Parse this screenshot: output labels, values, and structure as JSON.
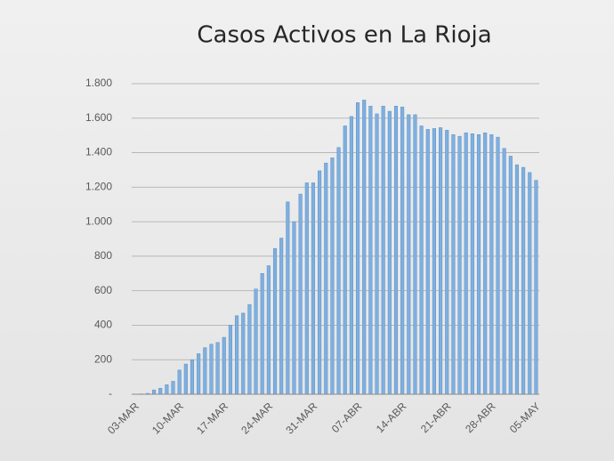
{
  "chart_data": {
    "type": "bar",
    "title": "Casos Activos en La Rioja",
    "categories": [
      "03-MAR",
      null,
      null,
      null,
      null,
      null,
      null,
      "10-MAR",
      null,
      null,
      null,
      null,
      null,
      null,
      "17-MAR",
      null,
      null,
      null,
      null,
      null,
      null,
      "24-MAR",
      null,
      null,
      null,
      null,
      null,
      null,
      "31-MAR",
      null,
      null,
      null,
      null,
      null,
      null,
      "07-ABR",
      null,
      null,
      null,
      null,
      null,
      null,
      "14-ABR",
      null,
      null,
      null,
      null,
      null,
      null,
      "21-ABR",
      null,
      null,
      null,
      null,
      null,
      null,
      "28-ABR",
      null,
      null,
      null,
      null,
      null,
      null,
      "05-MAY"
    ],
    "values": [
      1,
      2,
      5,
      25,
      35,
      55,
      75,
      140,
      175,
      200,
      235,
      270,
      290,
      300,
      330,
      400,
      455,
      470,
      520,
      610,
      700,
      745,
      845,
      905,
      1115,
      1000,
      1160,
      1225,
      1225,
      1295,
      1340,
      1370,
      1430,
      1555,
      1610,
      1690,
      1705,
      1670,
      1625,
      1670,
      1640,
      1670,
      1665,
      1620,
      1620,
      1555,
      1535,
      1540,
      1545,
      1530,
      1505,
      1495,
      1515,
      1510,
      1505,
      1515,
      1505,
      1490,
      1425,
      1380,
      1330,
      1315,
      1285,
      1240
    ],
    "color": "#7eb0e0",
    "ylim": [
      0,
      1800
    ],
    "yticks": [
      {
        "value": 0,
        "label": "-"
      },
      200,
      400,
      600,
      800,
      {
        "value": 1000,
        "label": "1.000"
      },
      {
        "value": 1200,
        "label": "1.200"
      },
      {
        "value": 1400,
        "label": "1.400"
      },
      {
        "value": 1600,
        "label": "1.600"
      },
      {
        "value": 1800,
        "label": "1.800"
      }
    ],
    "grid": true
  }
}
